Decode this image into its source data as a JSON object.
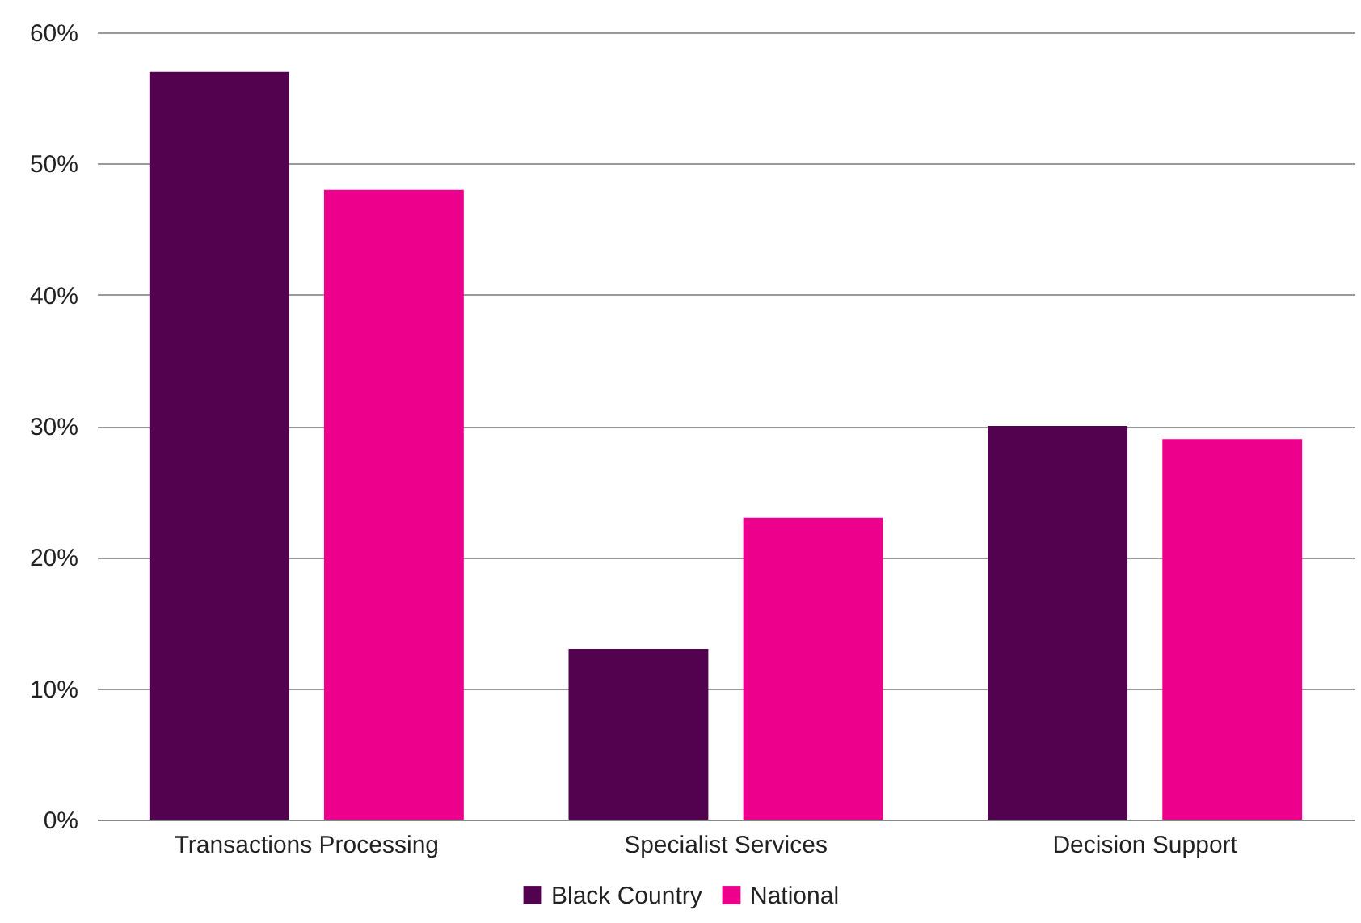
{
  "chart_data": {
    "type": "bar",
    "categories": [
      "Transactions Processing",
      "Specialist Services",
      "Decision Support"
    ],
    "series": [
      {
        "name": "Black Country",
        "color": "#52024f",
        "values": [
          57,
          13,
          30
        ]
      },
      {
        "name": "National",
        "color": "#ec008c",
        "values": [
          48,
          23,
          29
        ]
      }
    ],
    "ylim": [
      0,
      60
    ],
    "yticks": [
      {
        "value": 0,
        "label": "0%"
      },
      {
        "value": 10,
        "label": "10%"
      },
      {
        "value": 20,
        "label": "20%"
      },
      {
        "value": 30,
        "label": "30%"
      },
      {
        "value": 40,
        "label": "40%"
      },
      {
        "value": 50,
        "label": "50%"
      },
      {
        "value": 60,
        "label": "60%"
      }
    ],
    "grid": "y",
    "legend": "bottom"
  }
}
